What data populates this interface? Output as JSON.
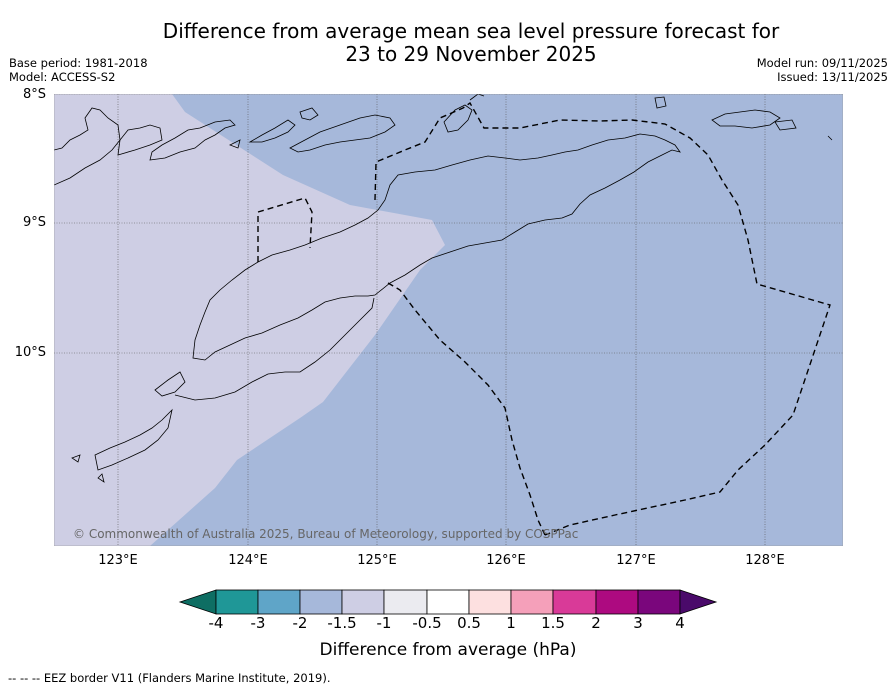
{
  "title": {
    "line1": "Difference from average mean sea level pressure forecast for",
    "line2": "23 to 29 November 2025"
  },
  "meta": {
    "base_period": "Base period: 1981-2018",
    "model": "Model: ACCESS-S2",
    "model_run": "Model run: 09/11/2025",
    "issued": "Issued: 13/11/2025"
  },
  "axes": {
    "lat_labels": [
      "8°S",
      "9°S",
      "10°S"
    ],
    "lon_labels": [
      "123°E",
      "124°E",
      "125°E",
      "126°E",
      "127°E",
      "128°E"
    ]
  },
  "credit": "© Commonwealth of Australia 2025, Bureau of Meteorology, supported by COSPPac",
  "colorbar": {
    "title": "Difference from average (hPa)",
    "ticks": [
      "-4",
      "-3",
      "-2",
      "-1.5",
      "-1",
      "-0.5",
      "0.5",
      "1",
      "1.5",
      "2",
      "3",
      "4"
    ],
    "colors": [
      "#0e6e63",
      "#1f9797",
      "#5fa5c8",
      "#a6b8da",
      "#cecee4",
      "#ebebf0",
      "#ffffff",
      "#fde0e0",
      "#f5a0ba",
      "#d93a98",
      "#ad0a80",
      "#7a067c",
      "#4a0a6a"
    ]
  },
  "map": {
    "fill_colors": {
      "minus_2_to_minus_1_5": "#a6b8da",
      "minus_1_5_to_minus_1": "#cecee4"
    }
  },
  "footnote": "--  --  -- EEZ border V11 (Flanders Marine Institute, 2019)."
}
